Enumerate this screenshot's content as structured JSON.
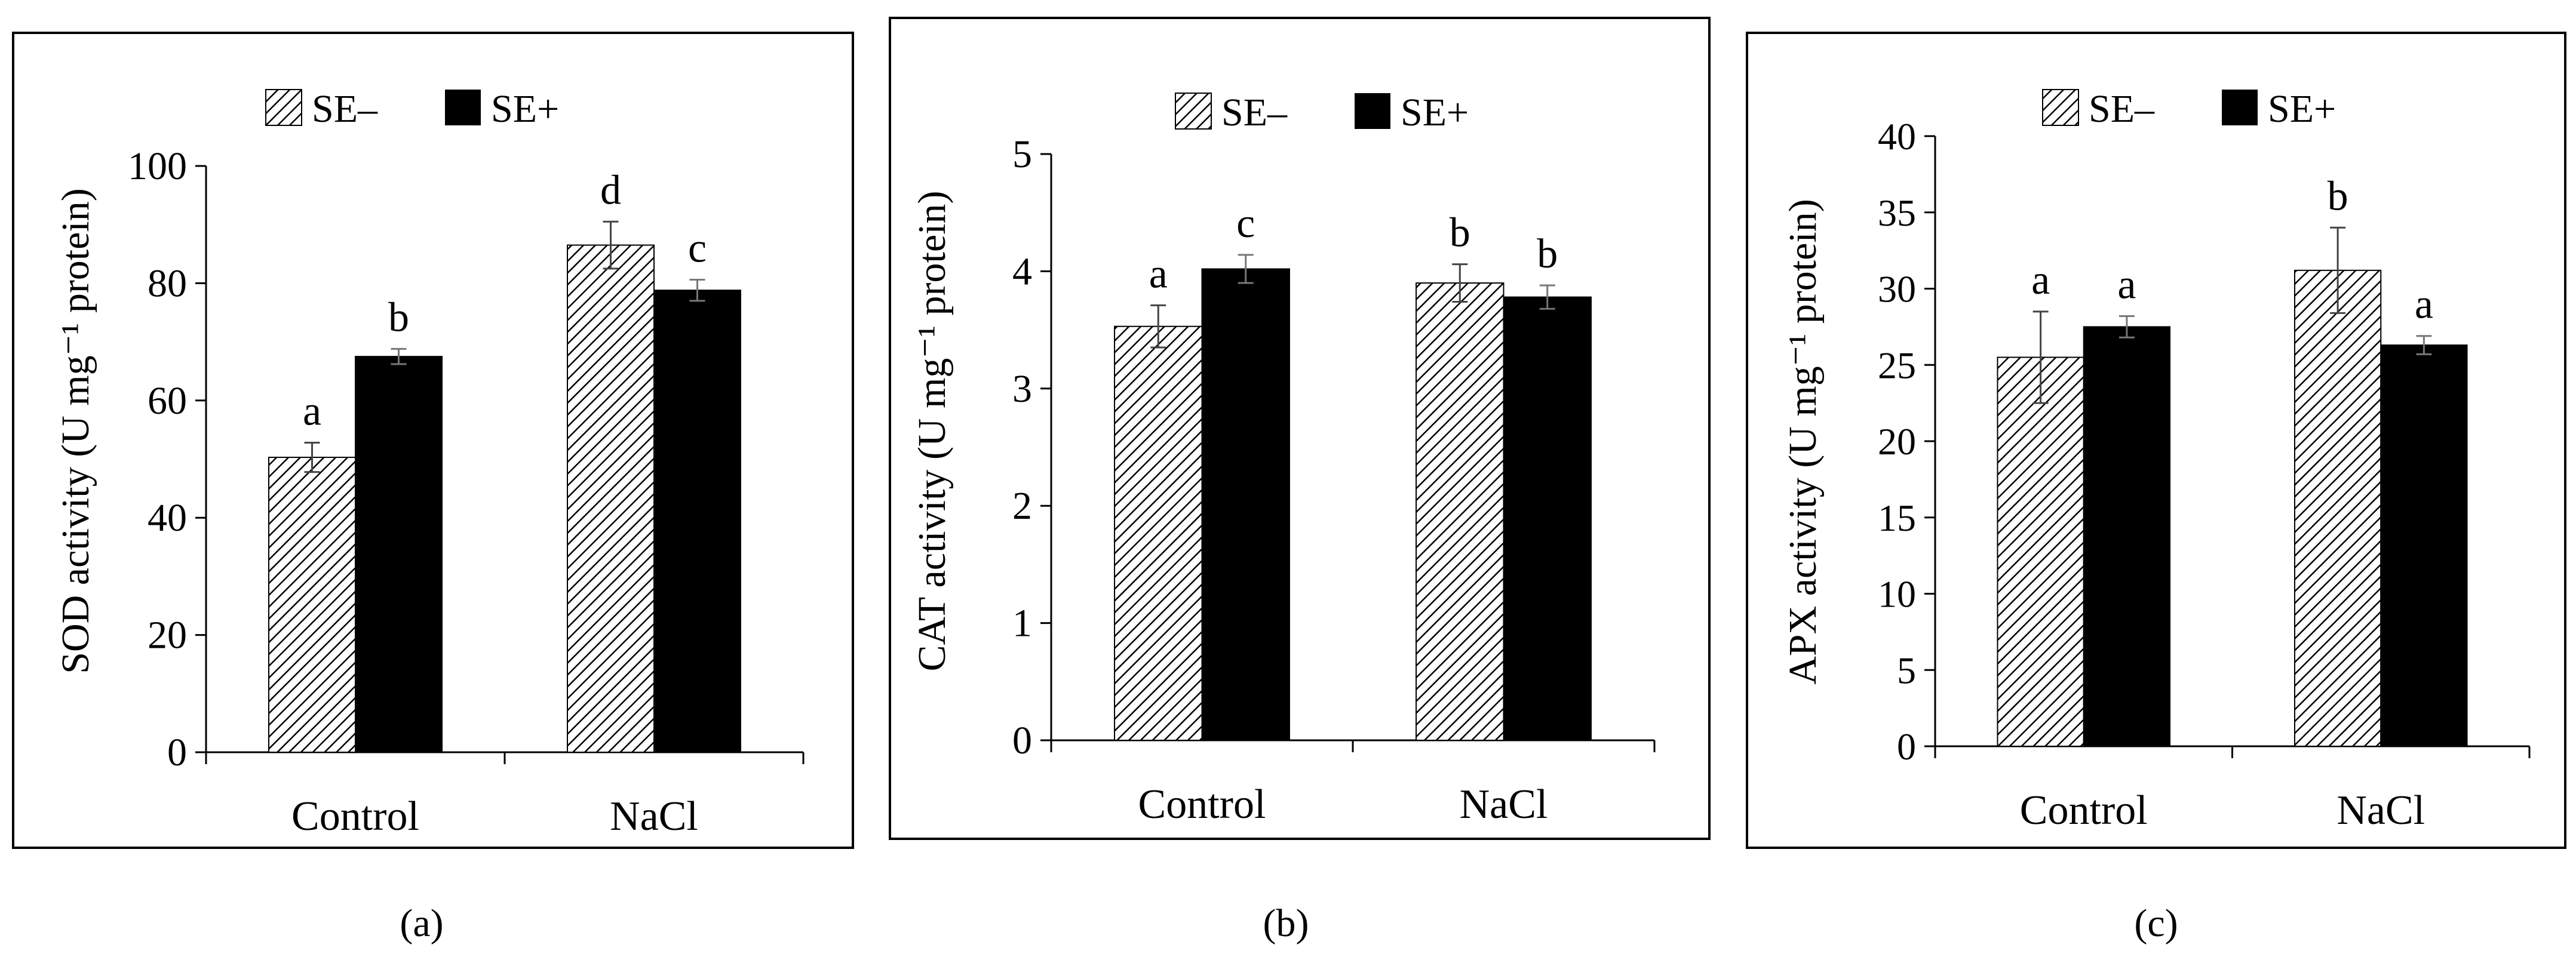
{
  "colors": {
    "se_minus_fill": "hatched",
    "se_plus_fill": "#000000",
    "axis": "#000000",
    "error_bar": "#555555"
  },
  "chart_data": [
    {
      "panel": "a",
      "panel_label": "(a)",
      "type": "bar",
      "categories": [
        "Control",
        "NaCl"
      ],
      "legend": [
        "SE–",
        "SE+"
      ],
      "ylabel": "SOD activity (U mg⁻¹ protein)",
      "ylim": [
        0,
        100
      ],
      "yticks": [
        0,
        20,
        40,
        60,
        80,
        100
      ],
      "series": [
        {
          "name": "SE–",
          "values": [
            50.3,
            86.5
          ],
          "errors": [
            2.5,
            4.0
          ],
          "letters": [
            "a",
            "d"
          ]
        },
        {
          "name": "SE+",
          "values": [
            67.5,
            78.8
          ],
          "errors": [
            1.3,
            1.8
          ],
          "letters": [
            "b",
            "c"
          ]
        }
      ]
    },
    {
      "panel": "b",
      "panel_label": "(b)",
      "type": "bar",
      "categories": [
        "Control",
        "NaCl"
      ],
      "legend": [
        "SE–",
        "SE+"
      ],
      "ylabel": "CAT activity  (U mg⁻¹ protein)",
      "ylim": [
        0,
        5
      ],
      "yticks": [
        0,
        1,
        2,
        3,
        4,
        5
      ],
      "series": [
        {
          "name": "SE–",
          "values": [
            3.53,
            3.9
          ],
          "errors": [
            0.18,
            0.16
          ],
          "letters": [
            "a",
            "b"
          ]
        },
        {
          "name": "SE+",
          "values": [
            4.02,
            3.78
          ],
          "errors": [
            0.12,
            0.1
          ],
          "letters": [
            "c",
            "b"
          ]
        }
      ]
    },
    {
      "panel": "c",
      "panel_label": "(c)",
      "type": "bar",
      "categories": [
        "Control",
        "NaCl"
      ],
      "legend": [
        "SE–",
        "SE+"
      ],
      "ylabel": "APX activity (U mg⁻¹ protein)",
      "ylim": [
        0,
        40
      ],
      "yticks": [
        0,
        5,
        10,
        15,
        20,
        25,
        30,
        35,
        40
      ],
      "series": [
        {
          "name": "SE–",
          "values": [
            25.5,
            31.2
          ],
          "errors": [
            3.0,
            2.8
          ],
          "letters": [
            "a",
            "b"
          ]
        },
        {
          "name": "SE+",
          "values": [
            27.5,
            26.3
          ],
          "errors": [
            0.7,
            0.6
          ],
          "letters": [
            "a",
            "a"
          ]
        }
      ]
    }
  ]
}
